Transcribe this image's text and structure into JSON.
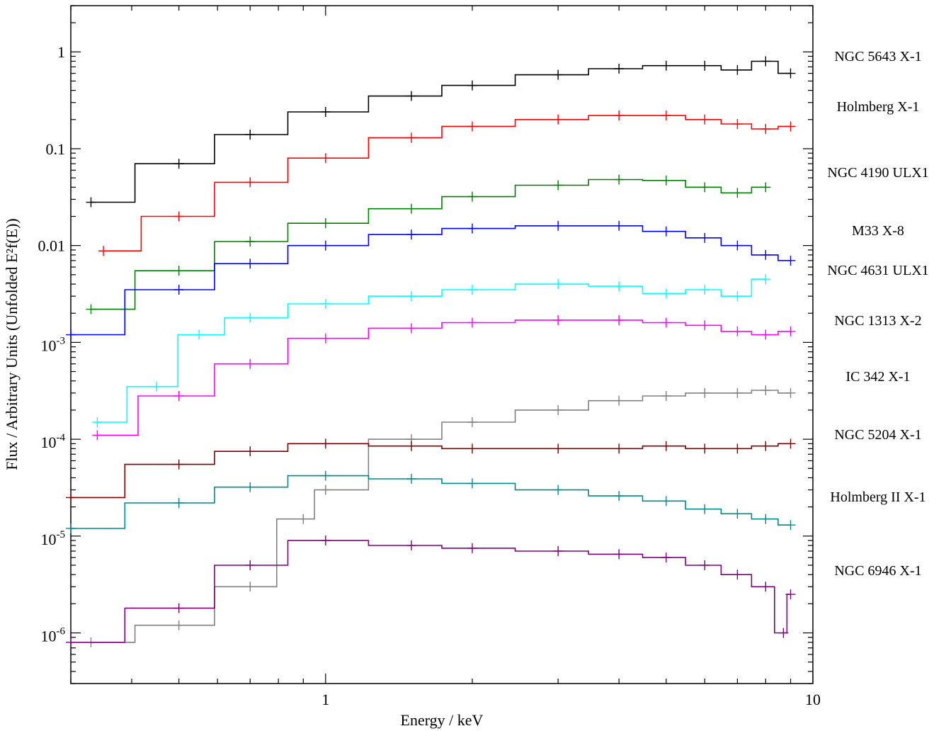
{
  "chart_data": {
    "type": "line",
    "xlabel": "Energy / keV",
    "ylabel": "Flux / Arbitrary Units (Unfolded E²f(E))",
    "x_scale": "log",
    "y_scale": "log",
    "xlim": [
      0.3,
      10
    ],
    "ylim": [
      3e-07,
      3
    ],
    "x_ticks": [
      {
        "value": 1,
        "label": "1"
      },
      {
        "value": 10,
        "label": "10"
      }
    ],
    "y_ticks": [
      {
        "value": 1,
        "base": "1",
        "exp": ""
      },
      {
        "value": 0.1,
        "base": "0.1",
        "exp": ""
      },
      {
        "value": 0.01,
        "base": "0.01",
        "exp": ""
      },
      {
        "value": 0.001,
        "base": "10",
        "exp": "-3"
      },
      {
        "value": 0.0001,
        "base": "10",
        "exp": "-4"
      },
      {
        "value": 1e-05,
        "base": "10",
        "exp": "-5"
      },
      {
        "value": 1e-06,
        "base": "10",
        "exp": "-6"
      }
    ],
    "grid": false,
    "legend_placement": "right, outside plot",
    "series": [
      {
        "name": "NGC 5643 X-1",
        "color": "#000000",
        "x": [
          0.33,
          0.5,
          0.7,
          1.0,
          1.5,
          2.0,
          3.0,
          4.0,
          5.0,
          6.0,
          7.0,
          8.0,
          9.0
        ],
        "y": [
          0.028,
          0.07,
          0.14,
          0.24,
          0.35,
          0.45,
          0.58,
          0.67,
          0.72,
          0.72,
          0.65,
          0.8,
          0.6
        ]
      },
      {
        "name": "Holmberg X-1",
        "color": "#ff0000",
        "x": [
          0.35,
          0.5,
          0.7,
          1.0,
          1.5,
          2.0,
          3.0,
          4.0,
          5.0,
          6.0,
          7.0,
          8.0,
          9.0
        ],
        "y": [
          0.0088,
          0.02,
          0.045,
          0.08,
          0.13,
          0.17,
          0.2,
          0.22,
          0.22,
          0.2,
          0.18,
          0.16,
          0.17
        ]
      },
      {
        "name": "NGC 4190 ULX1",
        "color": "#008000",
        "x": [
          0.33,
          0.5,
          0.7,
          1.0,
          1.5,
          2.0,
          3.0,
          4.0,
          5.0,
          6.0,
          7.0,
          8.0
        ],
        "y": [
          0.0022,
          0.0055,
          0.011,
          0.017,
          0.024,
          0.032,
          0.042,
          0.048,
          0.047,
          0.04,
          0.035,
          0.04
        ]
      },
      {
        "name": "M33 X-8",
        "color": "#0000ff",
        "x": [
          0.3,
          0.5,
          0.7,
          1.0,
          1.5,
          2.0,
          3.0,
          4.0,
          5.0,
          6.0,
          7.0,
          8.0,
          9.0
        ],
        "y": [
          0.0012,
          0.0035,
          0.0065,
          0.01,
          0.013,
          0.015,
          0.016,
          0.016,
          0.014,
          0.012,
          0.01,
          0.008,
          0.007
        ]
      },
      {
        "name": "NGC 4631 ULX1",
        "color": "#00ffff",
        "x": [
          0.34,
          0.45,
          0.55,
          0.7,
          1.0,
          1.5,
          2.0,
          3.0,
          4.0,
          5.0,
          6.0,
          7.0,
          8.0
        ],
        "y": [
          0.00015,
          0.00035,
          0.0012,
          0.0018,
          0.0025,
          0.003,
          0.0035,
          0.004,
          0.0038,
          0.0032,
          0.0035,
          0.003,
          0.0045
        ]
      },
      {
        "name": "NGC 1313 X-2",
        "color": "#ff00ff",
        "x": [
          0.34,
          0.5,
          0.7,
          1.0,
          1.5,
          2.0,
          3.0,
          4.0,
          5.0,
          6.0,
          7.0,
          8.0,
          9.0
        ],
        "y": [
          0.00011,
          0.00028,
          0.0006,
          0.0011,
          0.0014,
          0.0016,
          0.0017,
          0.0017,
          0.0016,
          0.0015,
          0.0013,
          0.0012,
          0.0013
        ]
      },
      {
        "name": "IC 342 X-1",
        "color": "#808080",
        "x": [
          0.33,
          0.5,
          0.7,
          0.9,
          1.0,
          1.5,
          2.0,
          3.0,
          4.0,
          5.0,
          6.0,
          7.0,
          8.0,
          9.0
        ],
        "y": [
          8e-07,
          1.2e-06,
          3e-06,
          1.5e-05,
          3e-05,
          0.0001,
          0.00015,
          0.0002,
          0.00025,
          0.00028,
          0.0003,
          0.0003,
          0.00032,
          0.0003
        ]
      },
      {
        "name": "NGC 5204 X-1",
        "color": "#800000",
        "x": [
          0.3,
          0.5,
          0.7,
          1.0,
          1.5,
          2.0,
          3.0,
          4.0,
          5.0,
          6.0,
          7.0,
          8.0,
          9.0
        ],
        "y": [
          2.5e-05,
          5.5e-05,
          7.5e-05,
          9e-05,
          8.5e-05,
          8e-05,
          8e-05,
          8e-05,
          8.5e-05,
          8e-05,
          8e-05,
          8.5e-05,
          9e-05
        ]
      },
      {
        "name": "Holmberg II X-1",
        "color": "#008b8b",
        "x": [
          0.3,
          0.5,
          0.7,
          1.0,
          1.5,
          2.0,
          3.0,
          4.0,
          5.0,
          6.0,
          7.0,
          8.0,
          9.0
        ],
        "y": [
          1.2e-05,
          2.2e-05,
          3.2e-05,
          4.2e-05,
          3.9e-05,
          3.5e-05,
          3e-05,
          2.6e-05,
          2.3e-05,
          1.9e-05,
          1.7e-05,
          1.5e-05,
          1.3e-05
        ]
      },
      {
        "name": "NGC 6946 X-1",
        "color": "#800080",
        "x": [
          0.3,
          0.5,
          0.7,
          1.0,
          1.5,
          2.0,
          3.0,
          4.0,
          5.0,
          6.0,
          7.0,
          8.0,
          8.7,
          9.0
        ],
        "y": [
          8e-07,
          1.8e-06,
          5e-06,
          9e-06,
          8e-06,
          7.5e-06,
          7e-06,
          6.5e-06,
          6e-06,
          5e-06,
          4e-06,
          3e-06,
          1e-06,
          2.5e-06
        ]
      }
    ]
  }
}
